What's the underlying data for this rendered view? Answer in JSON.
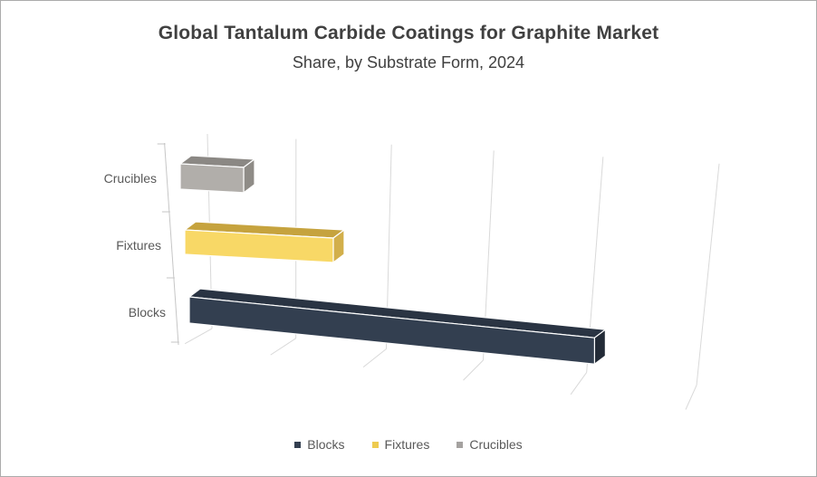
{
  "chart_data": {
    "type": "bar",
    "style": "3d-horizontal-bar",
    "title": "Global Tantalum Carbide Coatings for Graphite Market",
    "subtitle": "Share, by Substrate Form, 2024",
    "value_axis": {
      "tick_labels_shown": false,
      "gridline_count": 6,
      "range_grid_units": [
        0,
        5
      ],
      "grid": true
    },
    "value_labels_shown": false,
    "values_are_estimates_from_gridlines": true,
    "categories_top_to_bottom": [
      "Crucibles",
      "Fixtures",
      "Blocks"
    ],
    "bars": [
      {
        "label": "Crucibles",
        "value_pct": 7,
        "color_front": "#B1AEAA",
        "color_top": "#8B8884",
        "color_side": "#8F8C87"
      },
      {
        "label": "Fixtures",
        "value_pct": 24,
        "color_front": "#F8D866",
        "color_top": "#C6A33E",
        "color_side": "#D2AF4B"
      },
      {
        "label": "Blocks",
        "value_pct": 69,
        "color_front": "#333F50",
        "color_top": "#2A3443",
        "color_side": "#232B37"
      }
    ],
    "legend": {
      "position": "bottom",
      "items": [
        {
          "label": "Blocks",
          "color": "#333F50"
        },
        {
          "label": "Fixtures",
          "color": "#EECB4F"
        },
        {
          "label": "Crucibles",
          "color": "#A5A2A0"
        }
      ]
    },
    "colors": {
      "gridline": "#D9D9D9",
      "axis": "#C6C6C6",
      "text": "#595959",
      "title_text": "#404040",
      "bar_edge_highlight": "#FFFFFF"
    }
  }
}
